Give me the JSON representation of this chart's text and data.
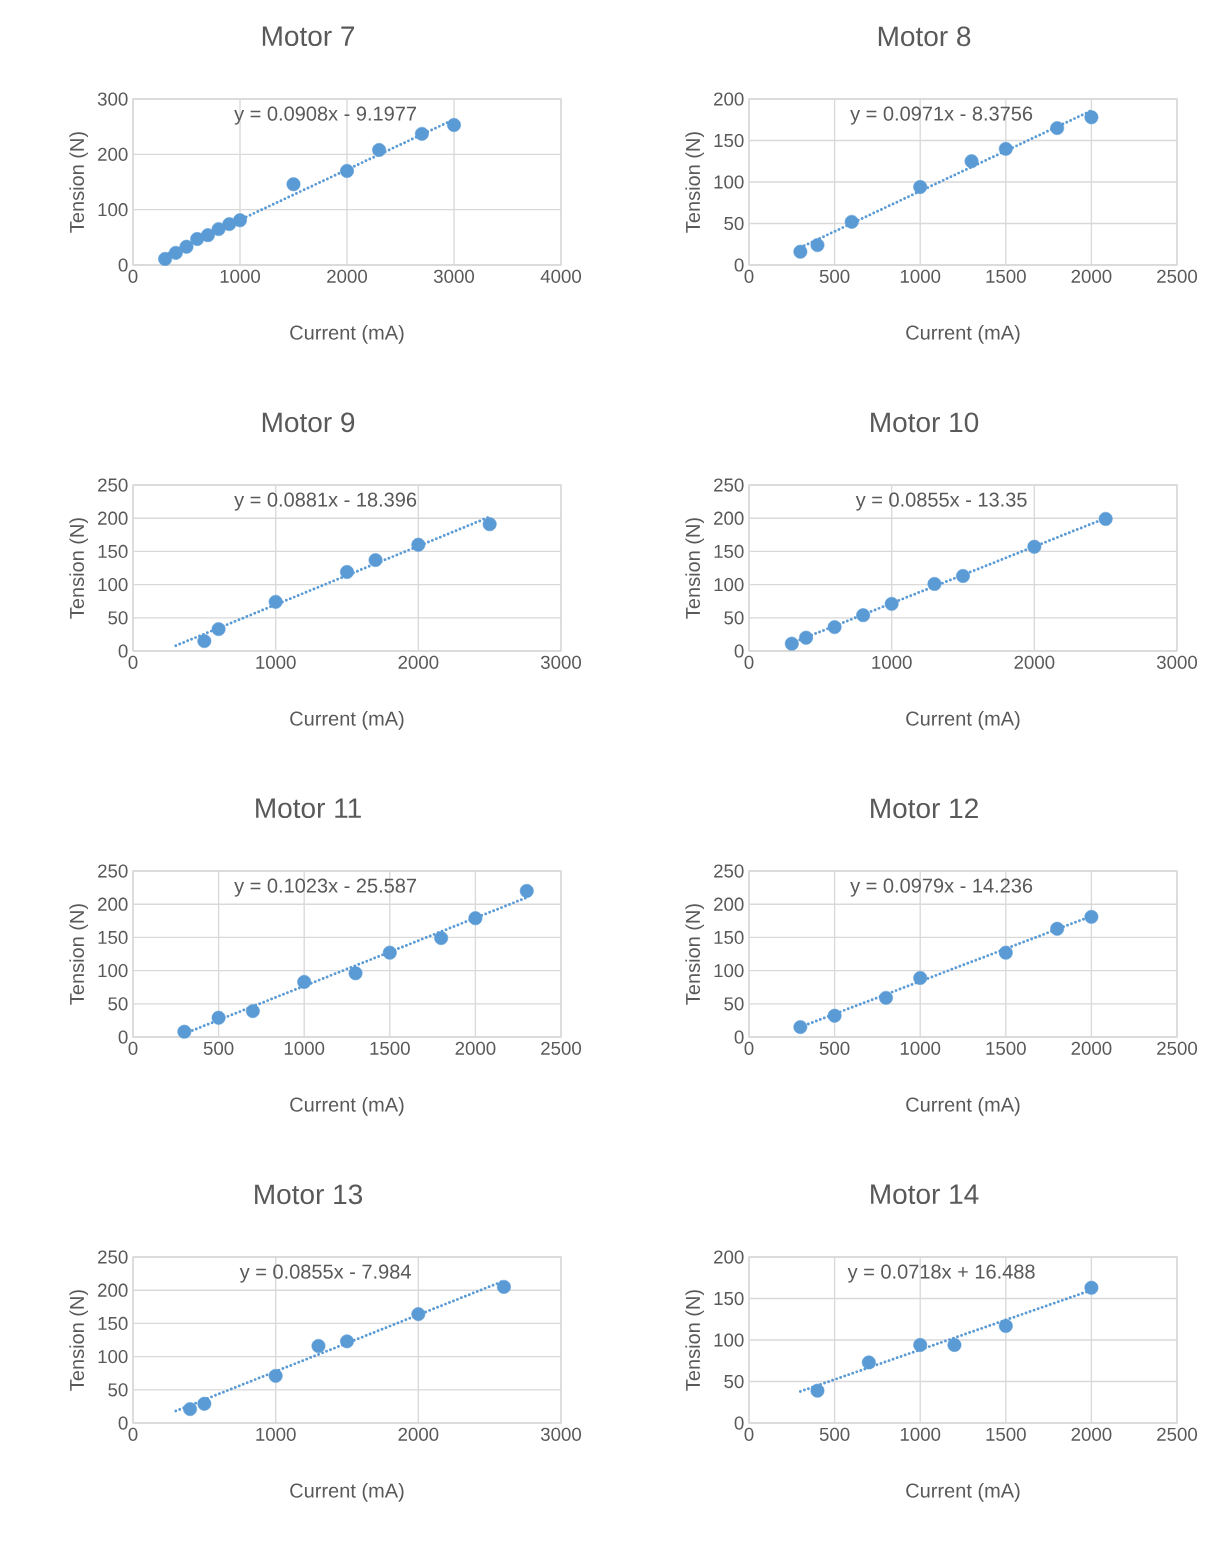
{
  "chart_data": [
    {
      "type": "scatter",
      "title": "Motor 7",
      "xlabel": "Current (mA)",
      "ylabel": "Tension (N)",
      "xlim": [
        0,
        4000
      ],
      "ylim": [
        0,
        300
      ],
      "xticks": [
        0,
        1000,
        2000,
        3000,
        4000
      ],
      "yticks": [
        0,
        100,
        200,
        300
      ],
      "grid": true,
      "annotations": [
        "y = 0.0908x - 9.1977"
      ],
      "series": [
        {
          "color": "#5b9bd5",
          "marker": "circle",
          "x": [
            300,
            400,
            500,
            600,
            700,
            800,
            900,
            1000,
            1500,
            2000,
            2300,
            2700,
            3000
          ],
          "values": [
            11,
            22,
            33,
            47,
            54,
            65,
            74,
            81,
            146,
            170,
            208,
            237,
            253
          ]
        },
        {
          "type": "line",
          "line_style": "dotted",
          "color": "#5b9bd5",
          "x": [
            300,
            3000
          ],
          "values": [
            18,
            263
          ]
        }
      ]
    },
    {
      "type": "scatter",
      "title": "Motor 8",
      "xlabel": "Current (mA)",
      "ylabel": "Tension (N)",
      "xlim": [
        0,
        2500
      ],
      "ylim": [
        0,
        200
      ],
      "xticks": [
        0,
        500,
        1000,
        1500,
        2000,
        2500
      ],
      "yticks": [
        0,
        50,
        100,
        150,
        200
      ],
      "grid": true,
      "annotations": [
        "y = 0.0971x - 8.3756"
      ],
      "series": [
        {
          "color": "#5b9bd5",
          "marker": "circle",
          "x": [
            300,
            400,
            600,
            1000,
            1300,
            1500,
            1800,
            2000
          ],
          "values": [
            16,
            24,
            52,
            94,
            125,
            140,
            165,
            178
          ]
        },
        {
          "type": "line",
          "line_style": "dotted",
          "color": "#5b9bd5",
          "x": [
            300,
            2000
          ],
          "values": [
            21,
            186
          ]
        }
      ]
    },
    {
      "type": "scatter",
      "title": "Motor 9",
      "xlabel": "Current (mA)",
      "ylabel": "Tension (N)",
      "xlim": [
        0,
        3000
      ],
      "ylim": [
        0,
        250
      ],
      "xticks": [
        0,
        1000,
        2000,
        3000
      ],
      "yticks": [
        0,
        50,
        100,
        150,
        200,
        250
      ],
      "grid": true,
      "annotations": [
        "y = 0.0881x - 18.396"
      ],
      "series": [
        {
          "color": "#5b9bd5",
          "marker": "circle",
          "x": [
            500,
            600,
            1000,
            1500,
            1700,
            2000,
            2500
          ],
          "values": [
            15,
            33,
            74,
            119,
            137,
            160,
            191
          ]
        },
        {
          "type": "line",
          "line_style": "dotted",
          "color": "#5b9bd5",
          "x": [
            300,
            2500
          ],
          "values": [
            8,
            202
          ]
        }
      ]
    },
    {
      "type": "scatter",
      "title": "Motor 10",
      "xlabel": "Current (mA)",
      "ylabel": "Tension (N)",
      "xlim": [
        0,
        3000
      ],
      "ylim": [
        0,
        250
      ],
      "xticks": [
        0,
        1000,
        2000,
        3000
      ],
      "yticks": [
        0,
        50,
        100,
        150,
        200,
        250
      ],
      "grid": true,
      "annotations": [
        "y = 0.0855x - 13.35"
      ],
      "series": [
        {
          "color": "#5b9bd5",
          "marker": "circle",
          "x": [
            300,
            400,
            600,
            800,
            1000,
            1300,
            1500,
            2000,
            2500
          ],
          "values": [
            11,
            20,
            36,
            54,
            71,
            101,
            113,
            157,
            199
          ]
        },
        {
          "type": "line",
          "line_style": "dotted",
          "color": "#5b9bd5",
          "x": [
            300,
            2500
          ],
          "values": [
            12,
            200
          ]
        }
      ]
    },
    {
      "type": "scatter",
      "title": "Motor 11",
      "xlabel": "Current (mA)",
      "ylabel": "Tension (N)",
      "xlim": [
        0,
        2500
      ],
      "ylim": [
        0,
        250
      ],
      "xticks": [
        0,
        500,
        1000,
        1500,
        2000,
        2500
      ],
      "yticks": [
        0,
        50,
        100,
        150,
        200,
        250
      ],
      "grid": true,
      "annotations": [
        "y = 0.1023x - 25.587"
      ],
      "series": [
        {
          "color": "#5b9bd5",
          "marker": "circle",
          "x": [
            300,
            500,
            700,
            1000,
            1300,
            1500,
            1800,
            2000,
            2300
          ],
          "values": [
            8,
            29,
            39,
            83,
            96,
            127,
            149,
            179,
            220
          ]
        },
        {
          "type": "line",
          "line_style": "dotted",
          "color": "#5b9bd5",
          "x": [
            300,
            2300
          ],
          "values": [
            5,
            210
          ]
        }
      ]
    },
    {
      "type": "scatter",
      "title": "Motor 12",
      "xlabel": "Current (mA)",
      "ylabel": "Tension (N)",
      "xlim": [
        0,
        2500
      ],
      "ylim": [
        0,
        250
      ],
      "xticks": [
        0,
        500,
        1000,
        1500,
        2000,
        2500
      ],
      "yticks": [
        0,
        50,
        100,
        150,
        200,
        250
      ],
      "grid": true,
      "annotations": [
        "y = 0.0979x - 14.236"
      ],
      "series": [
        {
          "color": "#5b9bd5",
          "marker": "circle",
          "x": [
            300,
            500,
            800,
            1000,
            1500,
            1800,
            2000
          ],
          "values": [
            15,
            32,
            59,
            89,
            127,
            163,
            181
          ]
        },
        {
          "type": "line",
          "line_style": "dotted",
          "color": "#5b9bd5",
          "x": [
            300,
            2000
          ],
          "values": [
            15,
            182
          ]
        }
      ]
    },
    {
      "type": "scatter",
      "title": "Motor 13",
      "xlabel": "Current (mA)",
      "ylabel": "Tension (N)",
      "xlim": [
        0,
        3000
      ],
      "ylim": [
        0,
        250
      ],
      "xticks": [
        0,
        1000,
        2000,
        3000
      ],
      "yticks": [
        0,
        50,
        100,
        150,
        200,
        250
      ],
      "grid": true,
      "annotations": [
        "y = 0.0855x - 7.984"
      ],
      "series": [
        {
          "color": "#5b9bd5",
          "marker": "circle",
          "x": [
            400,
            500,
            1000,
            1300,
            1500,
            2000,
            2600
          ],
          "values": [
            21,
            29,
            71,
            116,
            123,
            164,
            205
          ]
        },
        {
          "type": "line",
          "line_style": "dotted",
          "color": "#5b9bd5",
          "x": [
            300,
            2600
          ],
          "values": [
            18,
            214
          ]
        }
      ]
    },
    {
      "type": "scatter",
      "title": "Motor 14",
      "xlabel": "Current (mA)",
      "ylabel": "Tension (N)",
      "xlim": [
        0,
        2500
      ],
      "ylim": [
        0,
        200
      ],
      "xticks": [
        0,
        500,
        1000,
        1500,
        2000,
        2500
      ],
      "yticks": [
        0,
        50,
        100,
        150,
        200
      ],
      "grid": true,
      "annotations": [
        "y = 0.0718x + 16.488"
      ],
      "series": [
        {
          "color": "#5b9bd5",
          "marker": "circle",
          "x": [
            400,
            700,
            1000,
            1200,
            1500,
            2000
          ],
          "values": [
            39,
            73,
            94,
            94,
            117,
            163
          ]
        },
        {
          "type": "line",
          "line_style": "dotted",
          "color": "#5b9bd5",
          "x": [
            300,
            2000
          ],
          "values": [
            38,
            160
          ]
        }
      ]
    }
  ]
}
